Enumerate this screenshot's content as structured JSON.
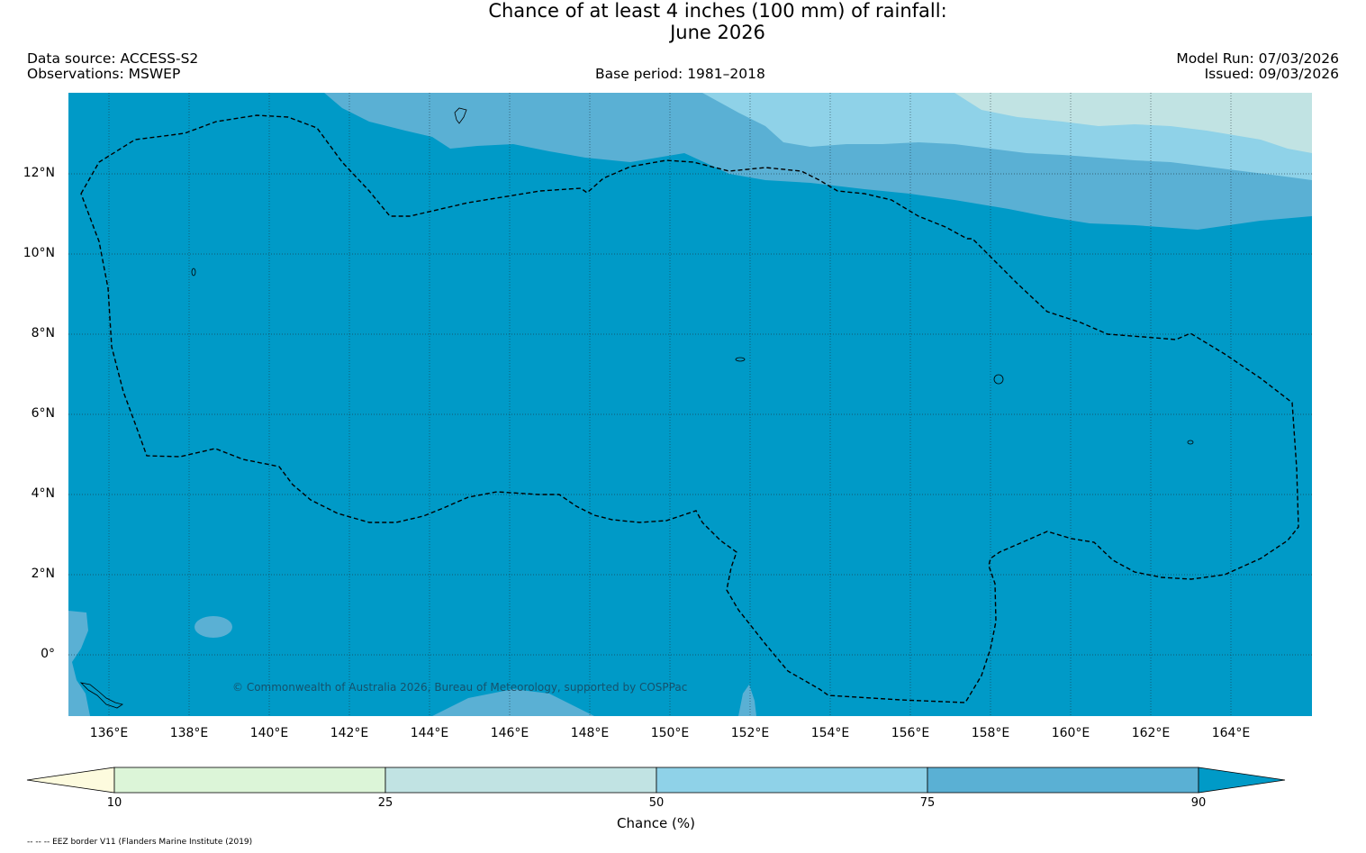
{
  "header": {
    "title_line1": "Chance of at least 4 inches (100  mm) of rainfall:",
    "title_line2": "June 2026",
    "data_source": "Data source: ACCESS-S2",
    "observations": "Observations: MSWEP",
    "base_period": "Base period: 1981–2018",
    "model_run": "Model Run: 07/03/2026",
    "issued": "Issued: 09/03/2026"
  },
  "map": {
    "lat_labels": [
      "12°N",
      "10°N",
      "8°N",
      "6°N",
      "4°N",
      "2°N",
      "0°"
    ],
    "lon_labels": [
      "136°E",
      "138°E",
      "140°E",
      "142°E",
      "144°E",
      "146°E",
      "148°E",
      "150°E",
      "152°E",
      "154°E",
      "156°E",
      "158°E",
      "160°E",
      "162°E",
      "164°E"
    ],
    "copyright": "© Commonwealth of Australia 2026, Bureau of Meteorology, supported by COSPPac",
    "colors": {
      "cat_90_plus": "#009ac7",
      "cat_75_90": "#5ab0d4",
      "cat_50_75": "#8fd2e8",
      "cat_25_50": "#c1e3e3",
      "cat_10_25": "#dcf5d8",
      "cat_below_10": "#fdfbde"
    }
  },
  "colorbar": {
    "ticks": [
      "10",
      "25",
      "50",
      "75",
      "90"
    ],
    "label": "Chance (%)",
    "segments": [
      {
        "range": "<10",
        "color": "#fdfbde"
      },
      {
        "range": "10-25",
        "color": "#dcf5d8"
      },
      {
        "range": "25-50",
        "color": "#c1e3e3"
      },
      {
        "range": "50-75",
        "color": "#8fd2e8"
      },
      {
        "range": "75-90",
        "color": "#5ab0d4"
      },
      {
        "range": ">90",
        "color": "#009ac7"
      }
    ]
  },
  "footer": {
    "eez_note": "-- -- -- EEZ border V11 (Flanders Marine Institute (2019)"
  }
}
